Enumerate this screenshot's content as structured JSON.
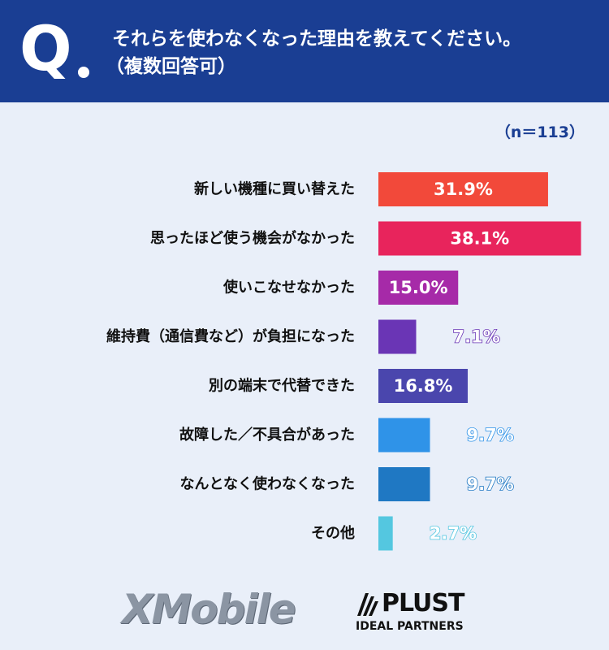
{
  "header": {
    "q_mark": "Q",
    "question_line1": "それらを使わなくなった理由を教えてください。",
    "question_line2": "（複数回答可）"
  },
  "sample_size": "（n＝113）",
  "chart_data": {
    "type": "bar",
    "orientation": "horizontal",
    "categories": [
      "新しい機種に買い替えた",
      "思ったほど使う機会がなかった",
      "使いこなせなかった",
      "維持費（通信費など）が負担になった",
      "別の端末で代替できた",
      "故障した／不具合があった",
      "なんとなく使わなくなった",
      "その他"
    ],
    "values": [
      31.9,
      38.1,
      15.0,
      7.1,
      16.8,
      9.7,
      9.7,
      2.7
    ],
    "value_labels": [
      "31.9%",
      "38.1%",
      "15.0%",
      "7.1%",
      "16.8%",
      "9.7%",
      "9.7%",
      "2.7%"
    ],
    "colors": [
      "#f2493a",
      "#e8245c",
      "#a62aa8",
      "#6a35b5",
      "#4a46ad",
      "#2f93e8",
      "#1f78c3",
      "#54c7e0"
    ],
    "xlim": [
      0,
      40
    ],
    "grid": false,
    "legend": "none"
  },
  "logos": {
    "xmobile": "XMobile",
    "plust_name": "PLUST",
    "plust_sub": "IDEAL PARTNERS"
  }
}
